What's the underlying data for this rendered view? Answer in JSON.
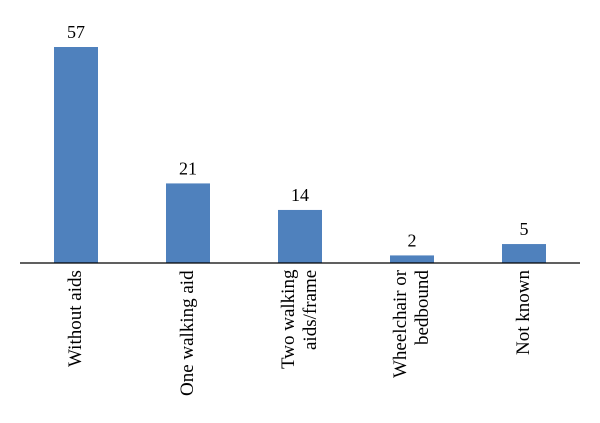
{
  "chart_data": {
    "type": "bar",
    "categories": [
      "Without aids",
      "One walking aid",
      "Two walking aids/frame",
      "Wheelchair or bedbound",
      "Not known"
    ],
    "values": [
      57,
      21,
      14,
      2,
      5
    ],
    "color": "#4f81bd"
  }
}
